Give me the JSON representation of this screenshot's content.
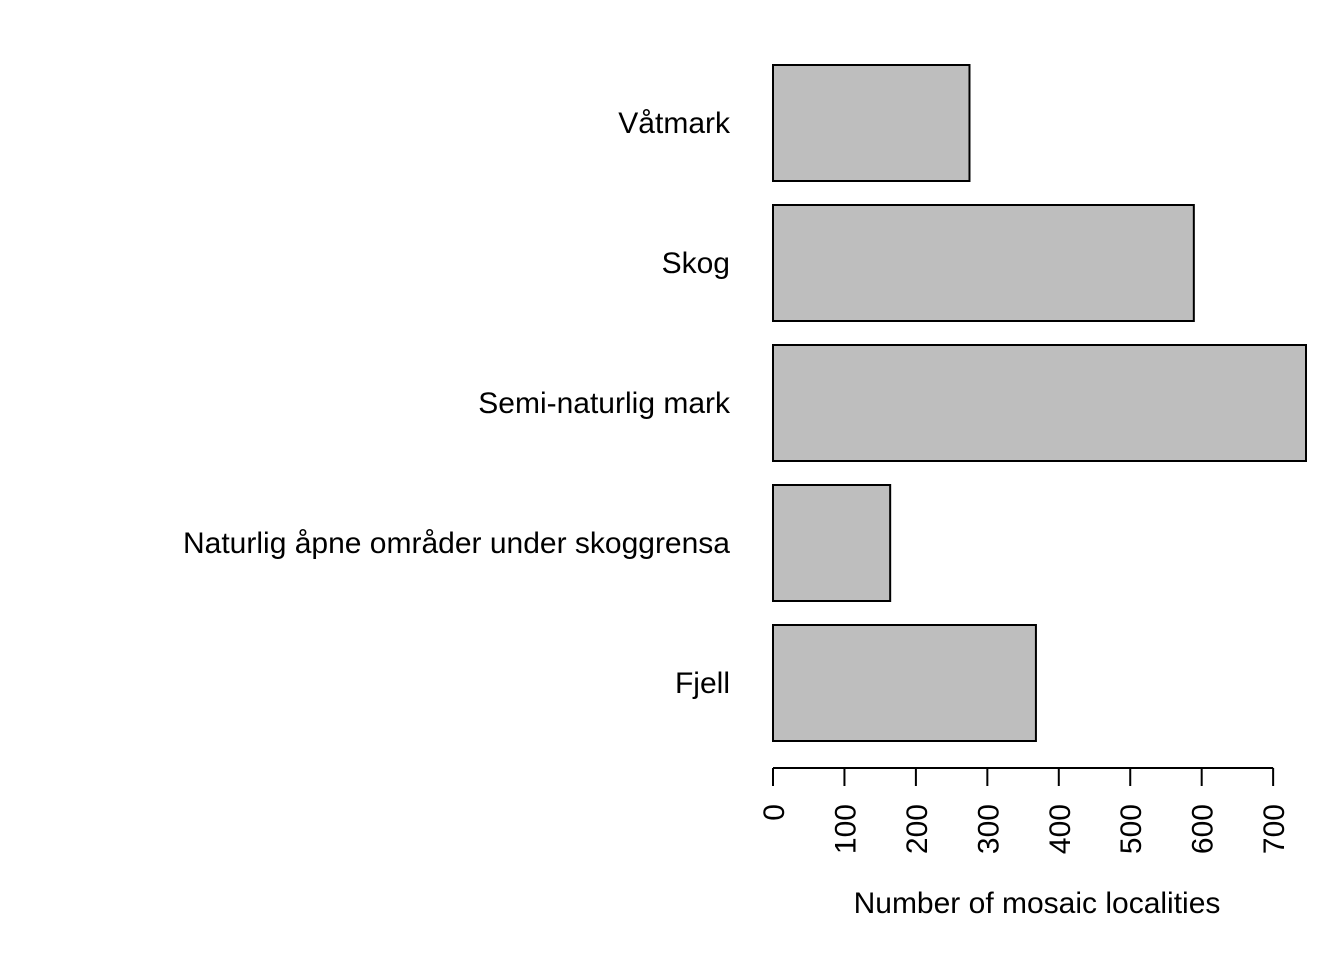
{
  "chart_data": {
    "type": "bar",
    "orientation": "horizontal",
    "categories": [
      "Fjell",
      "Naturlig åpne områder under skoggrensa",
      "Semi-naturlig mark",
      "Skog",
      "Våtmark"
    ],
    "values": [
      368,
      164,
      746,
      589,
      275
    ],
    "title": "",
    "xlabel": "Number of mosaic localities",
    "ylabel": "",
    "xlim": [
      0,
      746
    ],
    "xticks": [
      0,
      100,
      200,
      300,
      400,
      500,
      600,
      700
    ],
    "xtick_labels": [
      "0",
      "100",
      "200",
      "300",
      "400",
      "500",
      "600",
      "700"
    ],
    "grid": false,
    "legend": "none",
    "bar_color": "#bebebe",
    "bar_edge_color": "#000000"
  }
}
